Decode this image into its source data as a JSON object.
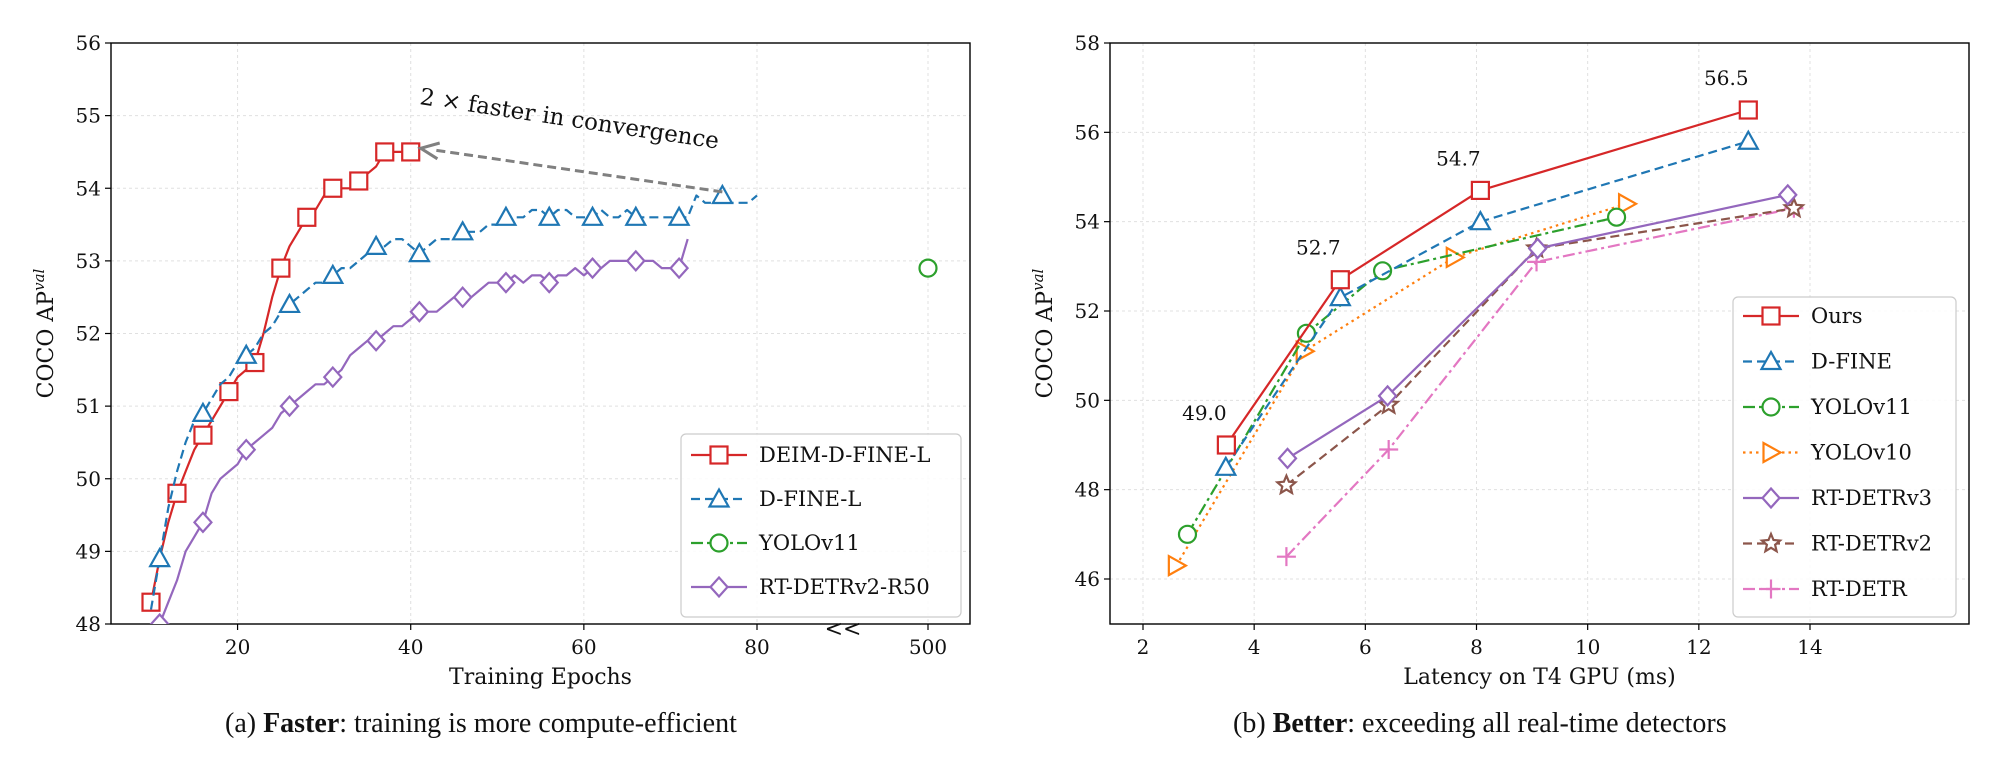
{
  "colors": {
    "red": "#d62728",
    "blue": "#1f77b4",
    "green": "#2ca02c",
    "orange": "#ff7f0e",
    "purple": "#9467bd",
    "brown": "#8c564b",
    "pink": "#e377c2",
    "arrow": "#808080",
    "grid": "#e0e0e0"
  },
  "captions": {
    "a_prefix": "(a) ",
    "a_bold": "Faster",
    "a_rest": ": training is more compute-efficient",
    "b_prefix": "(b) ",
    "b_bold": "Better",
    "b_rest": ": exceeding all real-time detectors"
  },
  "chart_data": [
    {
      "type": "line",
      "xlabel": "Training Epochs",
      "ylabel": "COCO AP",
      "ylabel_superscript": "val",
      "xlim": [
        5,
        80
      ],
      "broken_axis_tick": "500",
      "axis_break_marker": "<<",
      "ylim": [
        48,
        56
      ],
      "x_ticks": [
        "20",
        "40",
        "60",
        "80"
      ],
      "y_ticks": [
        "48",
        "49",
        "50",
        "51",
        "52",
        "53",
        "54",
        "55",
        "56"
      ],
      "grid": true,
      "legend_position": "bottom-right",
      "annotation": "2 × faster in convergence",
      "annotation_arrow": {
        "from": [
          76,
          53.95
        ],
        "to": [
          40,
          54.55
        ]
      },
      "series": [
        {
          "name": "DEIM-D-FINE-L",
          "color_key": "red",
          "marker": "square",
          "dash": "solid",
          "x": [
            10,
            11,
            12,
            13,
            14,
            15,
            16,
            17,
            18,
            19,
            20,
            21,
            22,
            23,
            24,
            25,
            26,
            27,
            28,
            29,
            30,
            31,
            32,
            33,
            34,
            35,
            36,
            37,
            38,
            39,
            40
          ],
          "y": [
            48.3,
            48.9,
            49.4,
            49.8,
            50.1,
            50.4,
            50.6,
            50.8,
            51.0,
            51.2,
            51.4,
            51.5,
            51.6,
            52.0,
            52.5,
            52.9,
            53.2,
            53.4,
            53.6,
            53.7,
            53.9,
            54.0,
            54.0,
            54.0,
            54.1,
            54.2,
            54.3,
            54.5,
            54.5,
            54.5,
            54.5
          ],
          "marker_x": [
            10,
            13,
            16,
            19,
            22,
            25,
            28,
            31,
            34,
            37,
            40
          ],
          "marker_y": [
            48.3,
            49.8,
            50.6,
            51.2,
            51.6,
            52.9,
            53.6,
            54.0,
            54.1,
            54.5,
            54.5
          ]
        },
        {
          "name": "D-FINE-L",
          "color_key": "blue",
          "marker": "triangle",
          "dash": "dashed",
          "x": [
            10,
            11,
            12,
            13,
            14,
            15,
            16,
            17,
            18,
            19,
            20,
            21,
            22,
            23,
            24,
            25,
            26,
            27,
            28,
            29,
            30,
            31,
            32,
            33,
            34,
            35,
            36,
            37,
            38,
            39,
            40,
            41,
            42,
            43,
            44,
            45,
            46,
            47,
            48,
            49,
            50,
            51,
            52,
            53,
            54,
            55,
            56,
            57,
            58,
            59,
            60,
            61,
            62,
            63,
            64,
            65,
            66,
            67,
            68,
            69,
            70,
            71,
            72,
            73,
            74,
            75,
            76,
            77,
            78,
            79,
            80
          ],
          "y": [
            48.2,
            48.9,
            49.6,
            50.1,
            50.5,
            50.8,
            50.9,
            51.1,
            51.3,
            51.4,
            51.6,
            51.7,
            51.8,
            52.0,
            52.1,
            52.3,
            52.4,
            52.5,
            52.6,
            52.7,
            52.7,
            52.8,
            52.9,
            52.9,
            53.0,
            53.1,
            53.2,
            53.2,
            53.3,
            53.3,
            53.2,
            53.1,
            53.2,
            53.3,
            53.3,
            53.3,
            53.4,
            53.4,
            53.4,
            53.5,
            53.5,
            53.6,
            53.6,
            53.6,
            53.7,
            53.7,
            53.6,
            53.7,
            53.7,
            53.6,
            53.6,
            53.6,
            53.7,
            53.6,
            53.6,
            53.7,
            53.6,
            53.6,
            53.6,
            53.6,
            53.6,
            53.6,
            53.6,
            53.9,
            53.8,
            53.8,
            53.9,
            53.8,
            53.8,
            53.8,
            53.9
          ],
          "marker_x": [
            11,
            16,
            21,
            26,
            31,
            36,
            41,
            46,
            51,
            56,
            61,
            66,
            71,
            76
          ],
          "marker_y": [
            48.9,
            50.9,
            51.7,
            52.4,
            52.8,
            53.2,
            53.1,
            53.4,
            53.6,
            53.6,
            53.6,
            53.6,
            53.6,
            53.9
          ]
        },
        {
          "name": "YOLOv11",
          "color_key": "green",
          "marker": "circle",
          "dash": "dashdot",
          "x": [
            "500"
          ],
          "y": [
            52.9
          ]
        },
        {
          "name": "RT-DETRv2-R50",
          "color_key": "purple",
          "marker": "diamond",
          "dash": "solid",
          "x": [
            10,
            11,
            12,
            13,
            14,
            15,
            16,
            17,
            18,
            19,
            20,
            21,
            22,
            23,
            24,
            25,
            26,
            27,
            28,
            29,
            30,
            31,
            32,
            33,
            34,
            35,
            36,
            37,
            38,
            39,
            40,
            41,
            42,
            43,
            44,
            45,
            46,
            47,
            48,
            49,
            50,
            51,
            52,
            53,
            54,
            55,
            56,
            57,
            58,
            59,
            60,
            61,
            62,
            63,
            64,
            65,
            66,
            67,
            68,
            69,
            70,
            71,
            72
          ],
          "y": [
            47.9,
            48.0,
            48.3,
            48.6,
            49.0,
            49.2,
            49.4,
            49.8,
            50.0,
            50.1,
            50.2,
            50.4,
            50.5,
            50.6,
            50.7,
            50.9,
            51.0,
            51.1,
            51.2,
            51.3,
            51.3,
            51.4,
            51.5,
            51.7,
            51.8,
            51.9,
            51.9,
            52.0,
            52.1,
            52.1,
            52.2,
            52.3,
            52.3,
            52.3,
            52.4,
            52.5,
            52.5,
            52.5,
            52.6,
            52.7,
            52.7,
            52.7,
            52.8,
            52.7,
            52.8,
            52.8,
            52.7,
            52.8,
            52.8,
            52.9,
            52.8,
            52.9,
            52.9,
            53.0,
            53.0,
            53.0,
            53.0,
            53.0,
            53.0,
            52.9,
            52.9,
            52.9,
            53.3
          ],
          "marker_x": [
            11,
            16,
            21,
            26,
            31,
            36,
            41,
            46,
            51,
            56,
            61,
            66,
            71
          ],
          "marker_y": [
            48.0,
            49.4,
            50.4,
            51.0,
            51.4,
            51.9,
            52.3,
            52.5,
            52.7,
            52.7,
            52.9,
            53.0,
            52.9
          ]
        }
      ]
    },
    {
      "type": "line",
      "xlabel": "Latency on T4 GPU (ms)",
      "ylabel": "COCO AP",
      "ylabel_superscript": "val",
      "xlim": [
        1.5,
        14.5
      ],
      "ylim": [
        45,
        58
      ],
      "x_ticks": [
        "2",
        "4",
        "6",
        "8",
        "10",
        "12",
        "14"
      ],
      "y_ticks": [
        "46",
        "48",
        "50",
        "52",
        "54",
        "56",
        "58"
      ],
      "grid": true,
      "legend_position": "bottom-right",
      "point_labels": [
        {
          "text": "49.0",
          "x": 3.5,
          "y": 49.0
        },
        {
          "text": "52.7",
          "x": 5.55,
          "y": 52.7
        },
        {
          "text": "54.7",
          "x": 8.07,
          "y": 54.7
        },
        {
          "text": "56.5",
          "x": 12.89,
          "y": 56.5
        }
      ],
      "series": [
        {
          "name": "Ours",
          "color_key": "red",
          "marker": "square",
          "dash": "solid",
          "x": [
            3.5,
            5.55,
            8.07,
            12.89
          ],
          "y": [
            49.0,
            52.7,
            54.7,
            56.5
          ]
        },
        {
          "name": "D-FINE",
          "color_key": "blue",
          "marker": "triangle",
          "dash": "dashed",
          "x": [
            3.49,
            5.55,
            8.07,
            12.89
          ],
          "y": [
            48.5,
            52.3,
            54.0,
            55.8
          ]
        },
        {
          "name": "YOLOv11",
          "color_key": "green",
          "marker": "circle",
          "dash": "dashdot",
          "x": [
            2.8,
            4.94,
            6.31,
            10.52
          ],
          "y": [
            47.0,
            51.5,
            52.9,
            54.1
          ]
        },
        {
          "name": "YOLOv10",
          "color_key": "orange",
          "marker": "triangle-right",
          "dash": "dotted",
          "x": [
            2.6,
            4.9,
            7.6,
            10.7
          ],
          "y": [
            46.3,
            51.1,
            53.2,
            54.4
          ]
        },
        {
          "name": "RT-DETRv3",
          "color_key": "purple",
          "marker": "diamond",
          "dash": "solid",
          "x": [
            4.6,
            6.4,
            9.1,
            13.6
          ],
          "y": [
            48.7,
            50.1,
            53.4,
            54.6
          ]
        },
        {
          "name": "RT-DETRv2",
          "color_key": "brown",
          "marker": "star",
          "dash": "dashed",
          "x": [
            4.58,
            6.42,
            9.08,
            13.71
          ],
          "y": [
            48.1,
            49.9,
            53.4,
            54.3
          ]
        },
        {
          "name": "RT-DETR",
          "color_key": "pink",
          "marker": "plus",
          "dash": "dashdot",
          "x": [
            4.58,
            6.42,
            9.08,
            13.71
          ],
          "y": [
            46.5,
            48.9,
            53.1,
            54.3
          ]
        }
      ]
    }
  ]
}
